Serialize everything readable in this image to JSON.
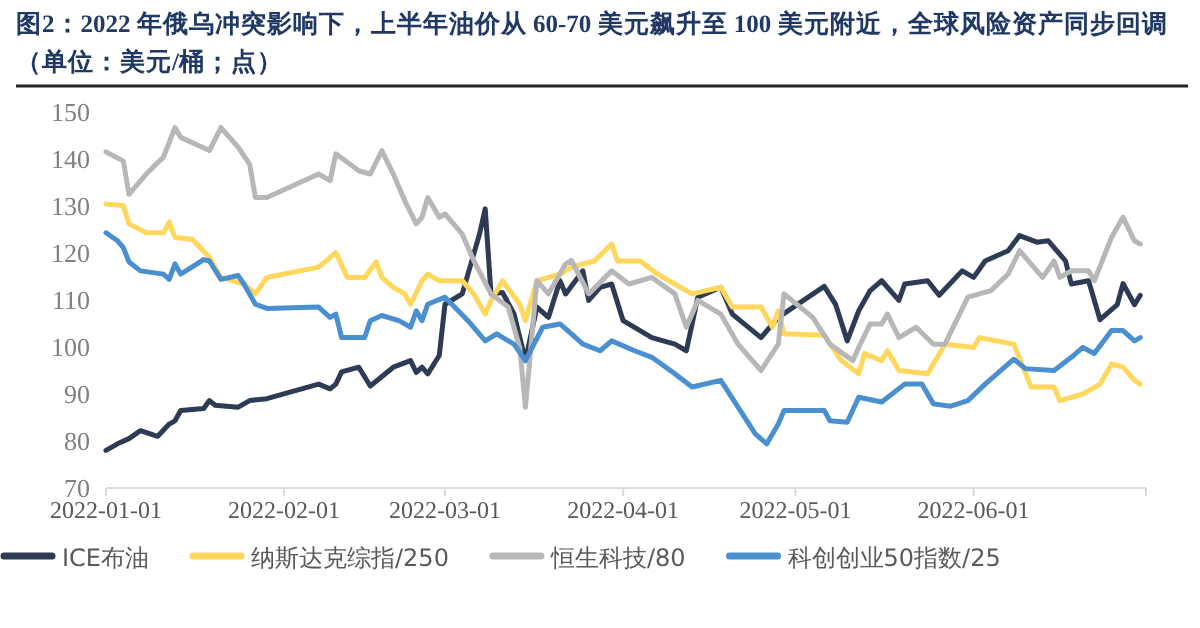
{
  "chart_data": {
    "type": "line",
    "title": "图2：2022 年俄乌冲突影响下，上半年油价从 60-70 美元飙升至 100 美元附近，全球风险资产同步回调（单位：美元/桶；点）",
    "xlim": [
      "2022-01-01",
      "2022-07-01"
    ],
    "xticks": [
      "2022-01-01",
      "2022-02-01",
      "2022-03-01",
      "2022-04-01",
      "2022-05-01",
      "2022-06-01"
    ],
    "ylim": [
      70,
      150
    ],
    "yticks": [
      70,
      80,
      90,
      100,
      110,
      120,
      130,
      140,
      150
    ],
    "grid": false,
    "legend": "bottom",
    "marker": "none",
    "line_style": "solid",
    "series": [
      {
        "name": "ICE布油",
        "color": "#2e3b55",
        "x": [
          "2022-01-01",
          "2022-01-03",
          "2022-01-05",
          "2022-01-07",
          "2022-01-10",
          "2022-01-12",
          "2022-01-13",
          "2022-01-14",
          "2022-01-18",
          "2022-01-19",
          "2022-01-20",
          "2022-01-24",
          "2022-01-26",
          "2022-01-29",
          "2022-02-07",
          "2022-02-09",
          "2022-02-10",
          "2022-02-11",
          "2022-02-14",
          "2022-02-16",
          "2022-02-20",
          "2022-02-23",
          "2022-02-24",
          "2022-02-25",
          "2022-02-26",
          "2022-02-28",
          "2022-03-01",
          "2022-03-04",
          "2022-03-07",
          "2022-03-08",
          "2022-03-09",
          "2022-03-11",
          "2022-03-13",
          "2022-03-15",
          "2022-03-17",
          "2022-03-19",
          "2022-03-21",
          "2022-03-22",
          "2022-03-25",
          "2022-03-26",
          "2022-03-28",
          "2022-03-30",
          "2022-04-01",
          "2022-04-06",
          "2022-04-10",
          "2022-04-12",
          "2022-04-14",
          "2022-04-18",
          "2022-04-20",
          "2022-04-25",
          "2022-04-28",
          "2022-05-06",
          "2022-05-08",
          "2022-05-10",
          "2022-05-12",
          "2022-05-14",
          "2022-05-16",
          "2022-05-19",
          "2022-05-20",
          "2022-05-24",
          "2022-05-26",
          "2022-05-30",
          "2022-06-01",
          "2022-06-03",
          "2022-06-07",
          "2022-06-09",
          "2022-06-12",
          "2022-06-14",
          "2022-06-17",
          "2022-06-18",
          "2022-06-21",
          "2022-06-23",
          "2022-06-26",
          "2022-06-27",
          "2022-06-29",
          "2022-06-30"
        ],
        "values": [
          78,
          79.4,
          80.5,
          82.2,
          81,
          83.6,
          84.3,
          86.5,
          86.9,
          88.6,
          87.6,
          87.2,
          88.6,
          89,
          92.1,
          91.1,
          92.1,
          94.7,
          95.7,
          91.7,
          95.7,
          97.1,
          94.6,
          95.7,
          94.3,
          98.2,
          109.1,
          111.3,
          124,
          129.4,
          111.3,
          111.6,
          107.1,
          97.1,
          108.5,
          106.3,
          114.1,
          111.3,
          116.2,
          109.9,
          112.7,
          113.4,
          105.6,
          102,
          100.6,
          99.2,
          110.6,
          112.7,
          107,
          102,
          106.3,
          112.9,
          109,
          101.3,
          107.7,
          112,
          114.1,
          109.9,
          113.4,
          114.1,
          111,
          116.2,
          114.8,
          118.3,
          120.5,
          123.7,
          122.3,
          122.6,
          118.3,
          113.4,
          114.1,
          105.8,
          109,
          113.5,
          109,
          111
        ]
      },
      {
        "name": "纳斯达克综指/250",
        "color": "#ffd75c",
        "x": [
          "2022-01-01",
          "2022-01-04",
          "2022-01-05",
          "2022-01-08",
          "2022-01-11",
          "2022-01-12",
          "2022-01-13",
          "2022-01-16",
          "2022-01-19",
          "2022-01-21",
          "2022-01-25",
          "2022-01-27",
          "2022-01-29",
          "2022-02-07",
          "2022-02-10",
          "2022-02-12",
          "2022-02-15",
          "2022-02-17",
          "2022-02-18",
          "2022-02-20",
          "2022-02-22",
          "2022-02-23",
          "2022-02-25",
          "2022-02-26",
          "2022-02-28",
          "2022-03-04",
          "2022-03-06",
          "2022-03-08",
          "2022-03-09",
          "2022-03-11",
          "2022-03-14",
          "2022-03-15",
          "2022-03-17",
          "2022-03-21",
          "2022-03-23",
          "2022-03-27",
          "2022-03-30",
          "2022-03-31",
          "2022-04-04",
          "2022-04-07",
          "2022-04-11",
          "2022-04-13",
          "2022-04-18",
          "2022-04-20",
          "2022-04-25",
          "2022-04-27",
          "2022-04-28",
          "2022-04-29",
          "2022-05-06",
          "2022-05-09",
          "2022-05-12",
          "2022-05-13",
          "2022-05-16",
          "2022-05-17",
          "2022-05-19",
          "2022-05-24",
          "2022-05-27",
          "2022-06-01",
          "2022-06-02",
          "2022-06-08",
          "2022-06-11",
          "2022-06-15",
          "2022-06-16",
          "2022-06-20",
          "2022-06-23",
          "2022-06-25",
          "2022-06-27",
          "2022-06-29",
          "2022-06-30"
        ],
        "values": [
          130.4,
          130.1,
          126.2,
          124.3,
          124.3,
          126.6,
          123.3,
          122.9,
          119.1,
          114.8,
          113.4,
          111.3,
          114.8,
          117,
          120.1,
          114.8,
          114.8,
          118.1,
          114.8,
          112.7,
          111.3,
          109.1,
          114.1,
          115.5,
          114.1,
          114.1,
          111.3,
          107,
          109.9,
          114.1,
          109.1,
          105.6,
          114.1,
          115.5,
          117,
          118.3,
          121.9,
          118.3,
          118.3,
          115.5,
          112.7,
          111.3,
          112.7,
          108.5,
          108.5,
          104.2,
          107.7,
          102.8,
          102.5,
          97.1,
          94.3,
          98.6,
          97.1,
          99.2,
          95,
          94.3,
          100.6,
          99.9,
          102,
          100.6,
          91.5,
          91.5,
          88.6,
          90,
          92.1,
          96.4,
          95.7,
          92.9,
          92.1
        ]
      },
      {
        "name": "恒生科技/80",
        "color": "#b7b7b7",
        "x": [
          "2022-01-01",
          "2022-01-04",
          "2022-01-05",
          "2022-01-08",
          "2022-01-11",
          "2022-01-13",
          "2022-01-14",
          "2022-01-19",
          "2022-01-21",
          "2022-01-24",
          "2022-01-26",
          "2022-01-27",
          "2022-01-29",
          "2022-02-07",
          "2022-02-09",
          "2022-02-10",
          "2022-02-14",
          "2022-02-16",
          "2022-02-18",
          "2022-02-20",
          "2022-02-22",
          "2022-02-24",
          "2022-02-25",
          "2022-02-26",
          "2022-02-28",
          "2022-03-01",
          "2022-03-04",
          "2022-03-06",
          "2022-03-09",
          "2022-03-12",
          "2022-03-14",
          "2022-03-15",
          "2022-03-17",
          "2022-03-19",
          "2022-03-22",
          "2022-03-23",
          "2022-03-26",
          "2022-03-30",
          "2022-04-02",
          "2022-04-06",
          "2022-04-10",
          "2022-04-12",
          "2022-04-14",
          "2022-04-18",
          "2022-04-21",
          "2022-04-25",
          "2022-04-28",
          "2022-04-29",
          "2022-05-04",
          "2022-05-07",
          "2022-05-11",
          "2022-05-12",
          "2022-05-14",
          "2022-05-16",
          "2022-05-17",
          "2022-05-19",
          "2022-05-22",
          "2022-05-25",
          "2022-05-27",
          "2022-05-31",
          "2022-06-04",
          "2022-06-07",
          "2022-06-09",
          "2022-06-13",
          "2022-06-15",
          "2022-06-16",
          "2022-06-18",
          "2022-06-21",
          "2022-06-22",
          "2022-06-25",
          "2022-06-27",
          "2022-06-29",
          "2022-06-30"
        ],
        "values": [
          141.5,
          139.6,
          132.5,
          136.8,
          140.4,
          146.7,
          144.6,
          141.8,
          146.7,
          142.5,
          138.9,
          131.8,
          131.8,
          136.8,
          135.4,
          141.1,
          137.5,
          136.8,
          141.8,
          136.8,
          131.1,
          126.2,
          127.6,
          131.8,
          127.6,
          128.3,
          124,
          118.4,
          111.3,
          108.5,
          99.9,
          87.2,
          114.1,
          111.3,
          117.7,
          118.4,
          111.3,
          116.2,
          113.4,
          114.8,
          111.3,
          104.2,
          109.9,
          107,
          100.6,
          95,
          100.6,
          111.3,
          106.3,
          100.6,
          97.1,
          99.9,
          104.9,
          104.9,
          107,
          102,
          104.2,
          100.6,
          100.6,
          110.6,
          112,
          115.5,
          120.5,
          114.8,
          118.3,
          114.8,
          116.2,
          116.2,
          114.1,
          123.3,
          127.6,
          122.6,
          121.9
        ]
      },
      {
        "name": "科创创业50指数/25",
        "color": "#4a8fd0",
        "x": [
          "2022-01-01",
          "2022-01-03",
          "2022-01-04",
          "2022-01-05",
          "2022-01-07",
          "2022-01-11",
          "2022-01-12",
          "2022-01-13",
          "2022-01-14",
          "2022-01-18",
          "2022-01-19",
          "2022-01-21",
          "2022-01-24",
          "2022-01-25",
          "2022-01-27",
          "2022-01-29",
          "2022-02-07",
          "2022-02-09",
          "2022-02-10",
          "2022-02-11",
          "2022-02-15",
          "2022-02-16",
          "2022-02-18",
          "2022-02-21",
          "2022-02-23",
          "2022-02-24",
          "2022-02-25",
          "2022-02-26",
          "2022-03-01",
          "2022-03-05",
          "2022-03-08",
          "2022-03-10",
          "2022-03-13",
          "2022-03-15",
          "2022-03-18",
          "2022-03-21",
          "2022-03-23",
          "2022-03-25",
          "2022-03-28",
          "2022-03-30",
          "2022-04-03",
          "2022-04-06",
          "2022-04-10",
          "2022-04-13",
          "2022-04-18",
          "2022-04-21",
          "2022-04-24",
          "2022-04-26",
          "2022-04-28",
          "2022-04-29",
          "2022-05-06",
          "2022-05-07",
          "2022-05-10",
          "2022-05-12",
          "2022-05-16",
          "2022-05-20",
          "2022-05-23",
          "2022-05-25",
          "2022-05-28",
          "2022-05-31",
          "2022-06-03",
          "2022-06-08",
          "2022-06-10",
          "2022-06-15",
          "2022-06-18",
          "2022-06-20",
          "2022-06-22",
          "2022-06-25",
          "2022-06-27",
          "2022-06-29",
          "2022-06-30"
        ],
        "values": [
          124.3,
          122.6,
          121.2,
          118.1,
          116.2,
          115.5,
          114.4,
          117.7,
          115.5,
          118.6,
          118.3,
          114.4,
          115.2,
          113.4,
          109.1,
          108.2,
          108.5,
          106.3,
          107,
          102,
          102,
          105.6,
          106.7,
          105.6,
          104.2,
          107.7,
          105.6,
          109.1,
          110.6,
          105.6,
          101.3,
          102.8,
          100.6,
          97.1,
          104.2,
          104.9,
          102.8,
          100.6,
          99.2,
          101.3,
          99.2,
          97.8,
          94.3,
          91.5,
          92.9,
          87.2,
          81.5,
          79.4,
          83.6,
          86.5,
          86.5,
          84.3,
          84,
          89.3,
          88.3,
          92.1,
          92.1,
          87.9,
          87.4,
          88.6,
          92.1,
          97.4,
          95.4,
          95,
          97.8,
          99.9,
          98.6,
          103.5,
          103.5,
          101.3,
          102
        ]
      }
    ]
  }
}
